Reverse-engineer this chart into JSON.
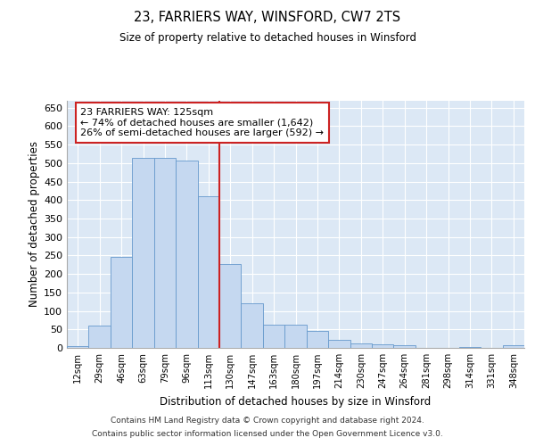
{
  "title1": "23, FARRIERS WAY, WINSFORD, CW7 2TS",
  "title2": "Size of property relative to detached houses in Winsford",
  "xlabel": "Distribution of detached houses by size in Winsford",
  "ylabel": "Number of detached properties",
  "bar_labels": [
    "12sqm",
    "29sqm",
    "46sqm",
    "63sqm",
    "79sqm",
    "96sqm",
    "113sqm",
    "130sqm",
    "147sqm",
    "163sqm",
    "180sqm",
    "197sqm",
    "214sqm",
    "230sqm",
    "247sqm",
    "264sqm",
    "281sqm",
    "298sqm",
    "314sqm",
    "331sqm",
    "348sqm"
  ],
  "bar_values": [
    5,
    60,
    246,
    515,
    515,
    507,
    410,
    228,
    120,
    63,
    63,
    46,
    22,
    12,
    9,
    8,
    0,
    0,
    2,
    0,
    7
  ],
  "bar_color": "#c5d8f0",
  "bar_edge_color": "#6699cc",
  "bg_color": "#dce8f5",
  "grid_color": "#ffffff",
  "vline_color": "#cc2222",
  "annotation_text": "23 FARRIERS WAY: 125sqm\n← 74% of detached houses are smaller (1,642)\n26% of semi-detached houses are larger (592) →",
  "annotation_box_color": "#ffffff",
  "annotation_box_edge": "#cc2222",
  "footer1": "Contains HM Land Registry data © Crown copyright and database right 2024.",
  "footer2": "Contains public sector information licensed under the Open Government Licence v3.0.",
  "ylim": [
    0,
    670
  ],
  "yticks": [
    0,
    50,
    100,
    150,
    200,
    250,
    300,
    350,
    400,
    450,
    500,
    550,
    600,
    650
  ]
}
